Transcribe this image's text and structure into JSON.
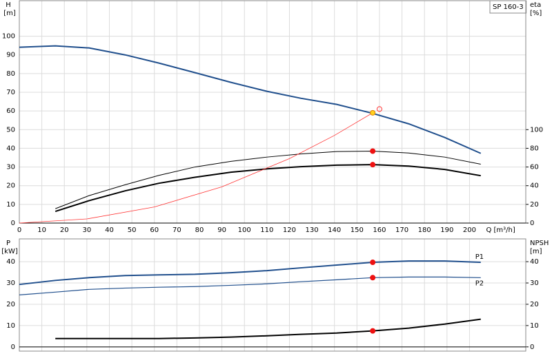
{
  "chart_data": [
    {
      "type": "line",
      "label_box": "SP 160-3",
      "ylabel": "H",
      "yunit": "[m]",
      "y2label": "eta",
      "y2unit": "[%]",
      "xlabel": "Q [m³/h]",
      "xlim": [
        0,
        225
      ],
      "xticks": [
        0,
        10,
        20,
        30,
        40,
        50,
        60,
        70,
        80,
        90,
        100,
        110,
        120,
        130,
        140,
        150,
        160,
        170,
        180,
        190,
        200
      ],
      "ylim": [
        0,
        119
      ],
      "yticks": [
        0,
        10,
        20,
        30,
        40,
        50,
        60,
        70,
        80,
        90,
        100
      ],
      "y2lim": [
        0,
        238
      ],
      "y2ticks": [
        0,
        20,
        40,
        60,
        80,
        100
      ],
      "grid": true,
      "xtick_labels": true,
      "series": [
        {
          "color": "#1f4e8c",
          "width": 2,
          "x": [
            0,
            16,
            31,
            47,
            62,
            78,
            94,
            110,
            125,
            141,
            157,
            173,
            189,
            205
          ],
          "values": [
            94.1,
            94.8,
            93.7,
            90,
            85.6,
            80.5,
            75.3,
            70.5,
            66.8,
            63.5,
            58.7,
            53.1,
            45.8,
            37.3
          ]
        },
        {
          "color": "#000000",
          "width": 1,
          "axis": "y2",
          "x": [
            16,
            31,
            47,
            62,
            78,
            94,
            110,
            125,
            141,
            157,
            173,
            189,
            205
          ],
          "values": [
            15.4,
            29.4,
            41,
            51,
            60,
            66,
            70.6,
            74,
            76.5,
            77,
            75,
            70.6,
            63
          ]
        },
        {
          "color": "#000000",
          "width": 2,
          "axis": "y2",
          "x": [
            16,
            31,
            47,
            62,
            78,
            94,
            110,
            125,
            141,
            157,
            173,
            189,
            205
          ],
          "values": [
            12.5,
            24,
            34.5,
            42.6,
            49,
            54.4,
            58,
            60.3,
            62,
            62.5,
            61,
            57.4,
            50.7
          ]
        },
        {
          "color": "#ff3333",
          "width": 0.8,
          "x": [
            0,
            30,
            60,
            90,
            120,
            140,
            157
          ],
          "values": [
            0,
            2.2,
            8.6,
            19.4,
            34.5,
            46.9,
            59
          ]
        }
      ],
      "points": [
        {
          "x": 157,
          "y": 59,
          "color": "#ffd21f",
          "stroke": "#e08000"
        },
        {
          "x": 160,
          "y": 61,
          "color": "none",
          "stroke": "#ff3333"
        },
        {
          "x": 157,
          "y": 77,
          "axis": "y2",
          "color": "#ee1111",
          "stroke": "#ee1111"
        },
        {
          "x": 157,
          "y": 62.5,
          "axis": "y2",
          "color": "#ee1111",
          "stroke": "#ee1111"
        }
      ]
    },
    {
      "type": "line",
      "ylabel": "P",
      "yunit": "[kW]",
      "y2label": "NPSH",
      "y2unit": "[m]",
      "xlim": [
        0,
        225
      ],
      "xticks": [
        0,
        10,
        20,
        30,
        40,
        50,
        60,
        70,
        80,
        90,
        100,
        110,
        120,
        130,
        140,
        150,
        160,
        170,
        180,
        190,
        200
      ],
      "ylim": [
        -2,
        50.7
      ],
      "yticks": [
        0,
        10,
        20,
        30,
        40
      ],
      "y2lim": [
        -2,
        50.7
      ],
      "y2ticks": [
        0,
        10,
        20,
        30,
        40
      ],
      "grid": true,
      "xtick_labels": false,
      "series": [
        {
          "name": "P1",
          "color": "#1f4e8c",
          "width": 2,
          "x": [
            0,
            16,
            31,
            47,
            62,
            78,
            94,
            110,
            125,
            141,
            157,
            173,
            189,
            205
          ],
          "values": [
            29.3,
            31.2,
            32.5,
            33.5,
            33.8,
            34.1,
            34.8,
            35.8,
            37.1,
            38.4,
            39.7,
            40.3,
            40.3,
            39.7
          ]
        },
        {
          "name": "P2",
          "color": "#1f4e8c",
          "width": 1.2,
          "x": [
            0,
            16,
            31,
            47,
            62,
            78,
            94,
            110,
            125,
            141,
            157,
            173,
            189,
            205
          ],
          "values": [
            24.4,
            25.7,
            27,
            27.6,
            28,
            28.3,
            28.9,
            29.6,
            30.6,
            31.5,
            32.5,
            32.8,
            32.8,
            32.5
          ]
        },
        {
          "color": "#000000",
          "width": 2,
          "axis": "y2",
          "x": [
            16,
            31,
            47,
            62,
            78,
            94,
            110,
            125,
            141,
            157,
            173,
            189,
            205
          ],
          "values": [
            3.9,
            3.9,
            3.9,
            3.9,
            4.2,
            4.6,
            5.2,
            5.9,
            6.5,
            7.5,
            8.8,
            10.7,
            13
          ]
        }
      ],
      "points": [
        {
          "x": 157,
          "y": 39.7,
          "color": "#ee1111",
          "stroke": "#ee1111"
        },
        {
          "x": 157,
          "y": 32.5,
          "color": "#ee1111",
          "stroke": "#ee1111"
        },
        {
          "x": 157,
          "y": 7.5,
          "axis": "y2",
          "color": "#ee1111",
          "stroke": "#ee1111"
        }
      ]
    }
  ]
}
